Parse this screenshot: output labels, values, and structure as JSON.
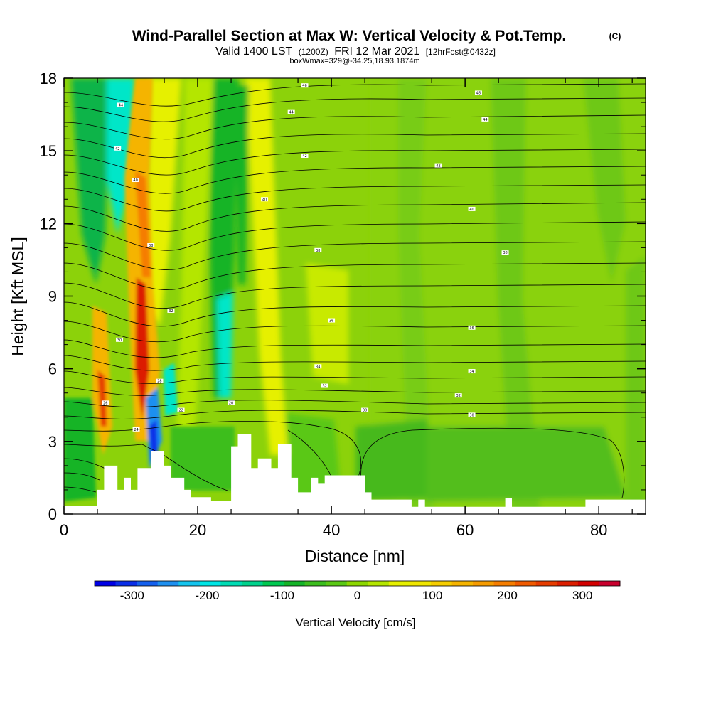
{
  "chart_data": {
    "type": "heatmap",
    "title": "Wind-Parallel Section at Max W: Vertical Velocity & Pot.Temp.",
    "copyright_mark": "(C)",
    "subtitle_parts": [
      "Valid 1400 LST",
      "(1200Z)",
      "FRI 12 Mar 2021",
      "[12hrFcst@0432z]"
    ],
    "box_info": "boxWmax=329@-34.25,18.93,1874m",
    "xlabel": "Distance [nm]",
    "ylabel": "Height [Kft MSL]",
    "xlim": [
      0,
      87
    ],
    "ylim": [
      0,
      18
    ],
    "x_ticks": [
      0,
      20,
      40,
      60,
      80
    ],
    "x_tick_labels": [
      "0",
      "20",
      "40",
      "60",
      "80"
    ],
    "y_ticks": [
      0,
      3,
      6,
      9,
      12,
      15,
      18
    ],
    "y_tick_labels": [
      "0",
      "3",
      "6",
      "9",
      "12",
      "15",
      "18"
    ],
    "colorbar": {
      "title": "Vertical Velocity [cm/s]",
      "min": -350,
      "max": 350,
      "tick_values": [
        -300,
        -200,
        -100,
        0,
        100,
        200,
        300
      ],
      "tick_labels": [
        "-300",
        "-200",
        "-100",
        "0",
        "100",
        "200",
        "300"
      ],
      "colors": [
        "#0000e6",
        "#0a2ee8",
        "#1460ee",
        "#1e90f0",
        "#14c4ee",
        "#00e6e6",
        "#00dcb4",
        "#00d28c",
        "#00c850",
        "#14b428",
        "#3cbe1e",
        "#5ac814",
        "#8cd700",
        "#b4e600",
        "#e6f000",
        "#f0e600",
        "#f5cd00",
        "#f5b400",
        "#f59b00",
        "#f57d00",
        "#f05a00",
        "#e63c00",
        "#dc1e00",
        "#d20000",
        "#c8002d"
      ]
    },
    "terrain_kft": [
      [
        0,
        0.35
      ],
      [
        5,
        0.35
      ],
      [
        5,
        1.0
      ],
      [
        6,
        1.0
      ],
      [
        6,
        2.0
      ],
      [
        8,
        2.0
      ],
      [
        8,
        1.0
      ],
      [
        9,
        1.0
      ],
      [
        9,
        1.5
      ],
      [
        10,
        1.5
      ],
      [
        10,
        1.0
      ],
      [
        11,
        1.0
      ],
      [
        11,
        1.9
      ],
      [
        13,
        1.9
      ],
      [
        13,
        2.6
      ],
      [
        15,
        2.6
      ],
      [
        15,
        2.0
      ],
      [
        16,
        2.0
      ],
      [
        16,
        1.5
      ],
      [
        18,
        1.5
      ],
      [
        18,
        1.0
      ],
      [
        19,
        1.0
      ],
      [
        19,
        0.7
      ],
      [
        22,
        0.7
      ],
      [
        22,
        0.55
      ],
      [
        25,
        0.55
      ],
      [
        25,
        2.8
      ],
      [
        26,
        2.8
      ],
      [
        26,
        3.3
      ],
      [
        28,
        3.3
      ],
      [
        28,
        1.9
      ],
      [
        29,
        1.9
      ],
      [
        29,
        2.3
      ],
      [
        31,
        2.3
      ],
      [
        31,
        1.9
      ],
      [
        32,
        1.9
      ],
      [
        32,
        2.9
      ],
      [
        34,
        2.9
      ],
      [
        34,
        1.5
      ],
      [
        35,
        1.5
      ],
      [
        35,
        0.9
      ],
      [
        37,
        0.9
      ],
      [
        37,
        1.5
      ],
      [
        38,
        1.5
      ],
      [
        38,
        1.25
      ],
      [
        39,
        1.25
      ],
      [
        39,
        1.6
      ],
      [
        45,
        1.6
      ],
      [
        45,
        0.9
      ],
      [
        46,
        0.9
      ],
      [
        46,
        0.6
      ],
      [
        52,
        0.6
      ],
      [
        52,
        0.3
      ],
      [
        53,
        0.3
      ],
      [
        53,
        0.6
      ],
      [
        54,
        0.6
      ],
      [
        54,
        0.3
      ],
      [
        66,
        0.3
      ],
      [
        66,
        0.65
      ],
      [
        67,
        0.65
      ],
      [
        67,
        0.3
      ],
      [
        78,
        0.3
      ],
      [
        78,
        0.6
      ],
      [
        87,
        0.6
      ]
    ],
    "theta_labels": [
      {
        "x": 8.5,
        "z": 16.9,
        "text": "44"
      },
      {
        "x": 8.0,
        "z": 15.1,
        "text": "42"
      },
      {
        "x": 10.7,
        "z": 13.8,
        "text": "40"
      },
      {
        "x": 13.0,
        "z": 11.1,
        "text": "38"
      },
      {
        "x": 16.0,
        "z": 8.4,
        "text": "32"
      },
      {
        "x": 8.3,
        "z": 7.2,
        "text": "30"
      },
      {
        "x": 14.3,
        "z": 5.5,
        "text": "28"
      },
      {
        "x": 6.2,
        "z": 4.6,
        "text": "26"
      },
      {
        "x": 10.8,
        "z": 3.5,
        "text": "24"
      },
      {
        "x": 17.5,
        "z": 4.3,
        "text": "22"
      },
      {
        "x": 25.0,
        "z": 4.6,
        "text": "20"
      },
      {
        "x": 36.0,
        "z": 17.7,
        "text": "46"
      },
      {
        "x": 34.0,
        "z": 16.6,
        "text": "44"
      },
      {
        "x": 36.0,
        "z": 14.8,
        "text": "42"
      },
      {
        "x": 30.0,
        "z": 13.0,
        "text": "40"
      },
      {
        "x": 38.0,
        "z": 10.9,
        "text": "38"
      },
      {
        "x": 40.0,
        "z": 8.0,
        "text": "36"
      },
      {
        "x": 38.0,
        "z": 6.1,
        "text": "34"
      },
      {
        "x": 39.0,
        "z": 5.3,
        "text": "32"
      },
      {
        "x": 45.0,
        "z": 4.3,
        "text": "30"
      },
      {
        "x": 62.0,
        "z": 17.4,
        "text": "46"
      },
      {
        "x": 63.0,
        "z": 16.3,
        "text": "44"
      },
      {
        "x": 56.0,
        "z": 14.4,
        "text": "42"
      },
      {
        "x": 61.0,
        "z": 12.6,
        "text": "40"
      },
      {
        "x": 66.0,
        "z": 10.8,
        "text": "38"
      },
      {
        "x": 61.0,
        "z": 7.7,
        "text": "36"
      },
      {
        "x": 61.0,
        "z": 5.9,
        "text": "34"
      },
      {
        "x": 59.0,
        "z": 4.9,
        "text": "32"
      },
      {
        "x": 61.0,
        "z": 4.1,
        "text": "30"
      }
    ]
  }
}
